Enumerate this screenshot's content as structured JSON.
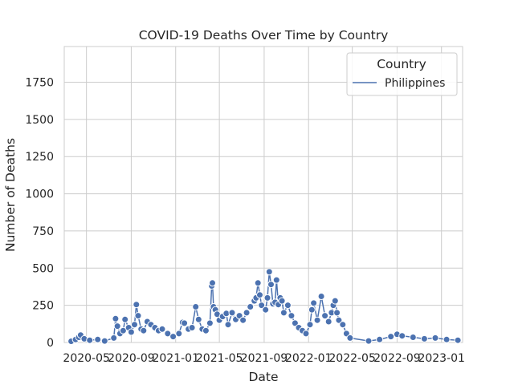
{
  "chart_data": {
    "type": "line",
    "title": "COVID-19 Deaths Over Time by Country",
    "xlabel": "Date",
    "ylabel": "Number of Deaths",
    "xlim": [
      "2020-03-01",
      "2023-02-28"
    ],
    "ylim": [
      0,
      1990
    ],
    "yticks": [
      0,
      250,
      500,
      750,
      1000,
      1250,
      1500,
      1750
    ],
    "xticks": [
      "2020-05",
      "2020-09",
      "2021-01",
      "2021-05",
      "2021-09",
      "2022-01",
      "2022-05",
      "2022-09",
      "2023-01"
    ],
    "grid": true,
    "legend": {
      "title": "Country",
      "position": "top-right"
    },
    "series": [
      {
        "name": "Philippines",
        "color": "#4c72b0",
        "marker": "circle",
        "points": [
          [
            "2020-03-20",
            8
          ],
          [
            "2020-04-01",
            20
          ],
          [
            "2020-04-10",
            35
          ],
          [
            "2020-04-15",
            50
          ],
          [
            "2020-04-25",
            25
          ],
          [
            "2020-05-10",
            15
          ],
          [
            "2020-06-01",
            20
          ],
          [
            "2020-06-20",
            10
          ],
          [
            "2020-07-15",
            30
          ],
          [
            "2020-07-20",
            160
          ],
          [
            "2020-07-25",
            110
          ],
          [
            "2020-08-01",
            60
          ],
          [
            "2020-08-10",
            80
          ],
          [
            "2020-08-15",
            155
          ],
          [
            "2020-08-25",
            100
          ],
          [
            "2020-09-01",
            70
          ],
          [
            "2020-09-10",
            120
          ],
          [
            "2020-09-15",
            255
          ],
          [
            "2020-09-20",
            180
          ],
          [
            "2020-09-28",
            90
          ],
          [
            "2020-10-05",
            80
          ],
          [
            "2020-10-15",
            140
          ],
          [
            "2020-10-25",
            120
          ],
          [
            "2020-11-05",
            100
          ],
          [
            "2020-11-15",
            80
          ],
          [
            "2020-11-25",
            90
          ],
          [
            "2020-12-10",
            60
          ],
          [
            "2020-12-25",
            40
          ],
          [
            "2021-01-10",
            60
          ],
          [
            "2021-01-20",
            135
          ],
          [
            "2021-01-25",
            130
          ],
          [
            "2021-02-05",
            90
          ],
          [
            "2021-02-15",
            100
          ],
          [
            "2021-02-25",
            240
          ],
          [
            "2021-03-05",
            155
          ],
          [
            "2021-03-15",
            90
          ],
          [
            "2021-03-25",
            80
          ],
          [
            "2021-04-05",
            130
          ],
          [
            "2021-04-10",
            380
          ],
          [
            "2021-04-12",
            400
          ],
          [
            "2021-04-15",
            240
          ],
          [
            "2021-04-20",
            220
          ],
          [
            "2021-04-25",
            190
          ],
          [
            "2021-05-01",
            150
          ],
          [
            "2021-05-10",
            175
          ],
          [
            "2021-05-20",
            195
          ],
          [
            "2021-05-25",
            120
          ],
          [
            "2021-06-05",
            200
          ],
          [
            "2021-06-15",
            155
          ],
          [
            "2021-06-25",
            180
          ],
          [
            "2021-07-05",
            150
          ],
          [
            "2021-07-15",
            200
          ],
          [
            "2021-07-25",
            240
          ],
          [
            "2021-08-05",
            280
          ],
          [
            "2021-08-10",
            300
          ],
          [
            "2021-08-15",
            400
          ],
          [
            "2021-08-20",
            320
          ],
          [
            "2021-08-25",
            250
          ],
          [
            "2021-09-05",
            220
          ],
          [
            "2021-09-10",
            300
          ],
          [
            "2021-09-15",
            475
          ],
          [
            "2021-09-20",
            390
          ],
          [
            "2021-09-25",
            260
          ],
          [
            "2021-10-01",
            270
          ],
          [
            "2021-10-05",
            420
          ],
          [
            "2021-10-10",
            255
          ],
          [
            "2021-10-15",
            300
          ],
          [
            "2021-10-20",
            280
          ],
          [
            "2021-10-25",
            200
          ],
          [
            "2021-11-05",
            250
          ],
          [
            "2021-11-15",
            180
          ],
          [
            "2021-11-25",
            130
          ],
          [
            "2021-12-05",
            100
          ],
          [
            "2021-12-15",
            80
          ],
          [
            "2021-12-25",
            60
          ],
          [
            "2022-01-05",
            120
          ],
          [
            "2022-01-10",
            220
          ],
          [
            "2022-01-15",
            265
          ],
          [
            "2022-01-25",
            150
          ],
          [
            "2022-02-05",
            310
          ],
          [
            "2022-02-15",
            180
          ],
          [
            "2022-02-25",
            140
          ],
          [
            "2022-03-05",
            200
          ],
          [
            "2022-03-10",
            250
          ],
          [
            "2022-03-15",
            280
          ],
          [
            "2022-03-20",
            200
          ],
          [
            "2022-03-25",
            150
          ],
          [
            "2022-04-05",
            120
          ],
          [
            "2022-04-15",
            60
          ],
          [
            "2022-04-25",
            30
          ],
          [
            "2022-06-15",
            10
          ],
          [
            "2022-07-15",
            20
          ],
          [
            "2022-08-15",
            40
          ],
          [
            "2022-09-01",
            55
          ],
          [
            "2022-09-15",
            45
          ],
          [
            "2022-10-15",
            35
          ],
          [
            "2022-11-15",
            25
          ],
          [
            "2022-12-15",
            30
          ],
          [
            "2023-01-15",
            20
          ],
          [
            "2023-02-15",
            15
          ]
        ]
      }
    ]
  }
}
